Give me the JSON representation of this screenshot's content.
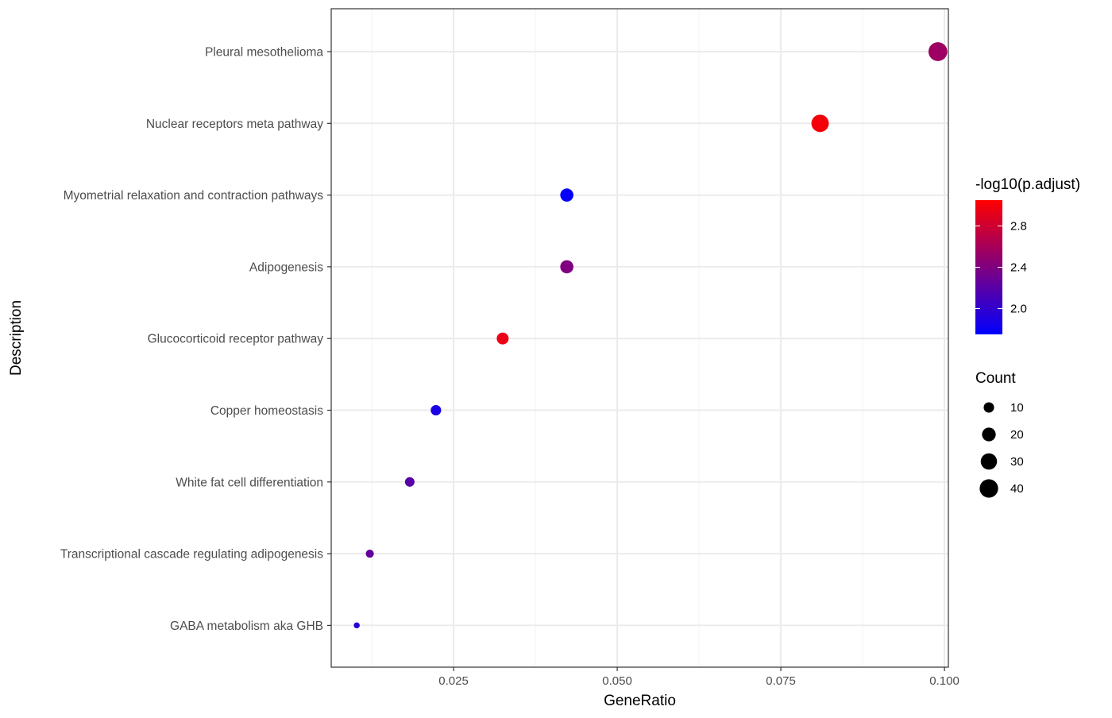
{
  "chart_data": {
    "type": "scatter",
    "xlabel": "GeneRatio",
    "ylabel": "Description",
    "xlim": [
      0.0063,
      0.1006
    ],
    "xticks": [
      0.025,
      0.05,
      0.075,
      0.1
    ],
    "xtick_labels": [
      "0.025",
      "0.050",
      "0.075",
      "0.100"
    ],
    "grid": true,
    "points": [
      {
        "label": "Pleural mesothelioma",
        "x": 0.099,
        "count": 42,
        "neg_log10_padj": 2.55
      },
      {
        "label": "Nuclear receptors meta pathway",
        "x": 0.081,
        "count": 35,
        "neg_log10_padj": 3.0
      },
      {
        "label": "Myometrial relaxation and contraction pathways",
        "x": 0.0423,
        "count": 18,
        "neg_log10_padj": 1.77
      },
      {
        "label": "Adipogenesis",
        "x": 0.0423,
        "count": 18,
        "neg_log10_padj": 2.4
      },
      {
        "label": "Glucocorticoid receptor pathway",
        "x": 0.0325,
        "count": 14,
        "neg_log10_padj": 2.95
      },
      {
        "label": "Copper homeostasis",
        "x": 0.0223,
        "count": 10,
        "neg_log10_padj": 1.88
      },
      {
        "label": "White fat cell differentiation",
        "x": 0.0183,
        "count": 8,
        "neg_log10_padj": 2.2
      },
      {
        "label": "Transcriptional cascade regulating adipogenesis",
        "x": 0.0122,
        "count": 5,
        "neg_log10_padj": 2.25
      },
      {
        "label": "GABA metabolism aka GHB",
        "x": 0.0102,
        "count": 2,
        "neg_log10_padj": 1.95
      }
    ],
    "color_legend": {
      "title": "-log10(p.adjust)",
      "range": [
        1.75,
        3.05
      ],
      "low_color": "#0000FF",
      "high_color": "#FF0000",
      "ticks": [
        2.0,
        2.4,
        2.8
      ],
      "tick_labels": [
        "2.0",
        "2.4",
        "2.8"
      ]
    },
    "size_legend": {
      "title": "Count",
      "values": [
        10,
        20,
        30,
        40
      ],
      "labels": [
        "10",
        "20",
        "30",
        "40"
      ]
    },
    "legend_position": "right"
  }
}
